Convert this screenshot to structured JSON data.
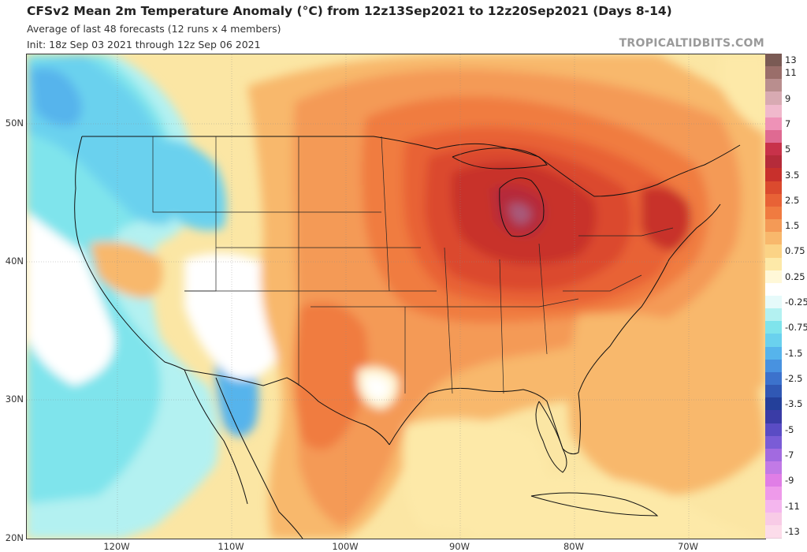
{
  "header": {
    "title": "CFSv2 Mean 2m Temperature Anomaly (°C) from 12z13Sep2021 to 12z20Sep2021 (Days 8-14)",
    "subtitle": "Average of last 48 forecasts (12 runs x 4 members)",
    "init": "Init: 18z Sep 03 2021 through 12z Sep 06 2021",
    "credit": "TROPICALTIDBITS.COM"
  },
  "axes": {
    "lat_labels": [
      "50N",
      "40N",
      "30N",
      "20N"
    ],
    "lon_labels": [
      "120W",
      "110W",
      "100W",
      "90W",
      "80W",
      "70W"
    ]
  },
  "colorbar": {
    "levels": [
      {
        "label": "13",
        "color": "#7a5a54"
      },
      {
        "label": "11",
        "color": "#9a6e6a"
      },
      {
        "label": "",
        "color": "#b98e8e"
      },
      {
        "label": "9",
        "color": "#d8aab2"
      },
      {
        "label": "",
        "color": "#f0b9cc"
      },
      {
        "label": "7",
        "color": "#ee92b7"
      },
      {
        "label": "",
        "color": "#df6a92"
      },
      {
        "label": "5",
        "color": "#c8324a"
      },
      {
        "label": "",
        "color": "#b52b3a"
      },
      {
        "label": "3.5",
        "color": "#c8302c"
      },
      {
        "label": "",
        "color": "#db4a2e"
      },
      {
        "label": "2.5",
        "color": "#e86236"
      },
      {
        "label": "",
        "color": "#f07b40"
      },
      {
        "label": "1.5",
        "color": "#f49a56"
      },
      {
        "label": "",
        "color": "#f8b86c"
      },
      {
        "label": "0.75",
        "color": "#fbd386"
      },
      {
        "label": "",
        "color": "#fde9a8"
      },
      {
        "label": "0.25",
        "color": "#fff8d8"
      },
      {
        "label": "",
        "color": "#ffffff"
      },
      {
        "label": "-0.25",
        "color": "#e6fafa"
      },
      {
        "label": "",
        "color": "#b3f1f1"
      },
      {
        "label": "-0.75",
        "color": "#7fe4ec"
      },
      {
        "label": "",
        "color": "#6ad1ee"
      },
      {
        "label": "-1.5",
        "color": "#56b4ec"
      },
      {
        "label": "",
        "color": "#4892e0"
      },
      {
        "label": "-2.5",
        "color": "#3c72cc"
      },
      {
        "label": "",
        "color": "#3058b4"
      },
      {
        "label": "-3.5",
        "color": "#24409a"
      },
      {
        "label": "",
        "color": "#3a3ca6"
      },
      {
        "label": "-5",
        "color": "#5a4cc4"
      },
      {
        "label": "",
        "color": "#7a5cd6"
      },
      {
        "label": "-7",
        "color": "#a26ae0"
      },
      {
        "label": "",
        "color": "#c27ae6"
      },
      {
        "label": "-9",
        "color": "#e07ee6"
      },
      {
        "label": "",
        "color": "#ee9aea"
      },
      {
        "label": "-11",
        "color": "#f4b6ee"
      },
      {
        "label": "",
        "color": "#f8cbe6"
      },
      {
        "label": "-13",
        "color": "#fcdcea"
      }
    ]
  },
  "map_colors": {
    "base_warm": "#fbe6a4",
    "pale": "#fff8d8",
    "light_orange": "#f8b86c",
    "orange": "#f49a56",
    "dark_orange": "#f07b40",
    "red_orange": "#e86236",
    "red": "#db4a2e",
    "deep_red": "#c8302c",
    "darkest": "#b52b3a",
    "purple_core": "#a85a7a",
    "white": "#ffffff",
    "cyan_pale": "#b3f1f1",
    "cyan": "#7fe4ec",
    "light_blue": "#6ad1ee",
    "blue": "#56b4ec",
    "boundary": "#111111"
  }
}
